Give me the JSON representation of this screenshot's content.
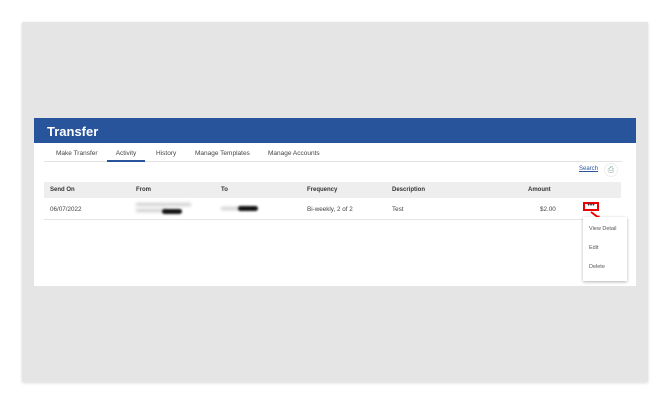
{
  "header": {
    "title": "Transfer"
  },
  "tabs": [
    {
      "label": "Make Transfer"
    },
    {
      "label": "Activity",
      "active": true
    },
    {
      "label": "History"
    },
    {
      "label": "Manage Templates"
    },
    {
      "label": "Manage Accounts"
    }
  ],
  "toolbar": {
    "search_label": "Search",
    "print_icon": "print-icon"
  },
  "table": {
    "columns": [
      "Send On",
      "From",
      "To",
      "Frequency",
      "Description",
      "Amount"
    ],
    "rows": [
      {
        "send_on": "06/07/2022",
        "from": "[redacted]",
        "to": "[redacted]",
        "frequency": "Bi-weekly, 2 of 2",
        "description": "Test",
        "amount": "$2.00"
      }
    ]
  },
  "row_menu": {
    "trigger": "•••",
    "items": [
      "View Detail",
      "Edit",
      "Delete"
    ]
  },
  "colors": {
    "brand": "#27549b",
    "highlight": "#e00000"
  }
}
